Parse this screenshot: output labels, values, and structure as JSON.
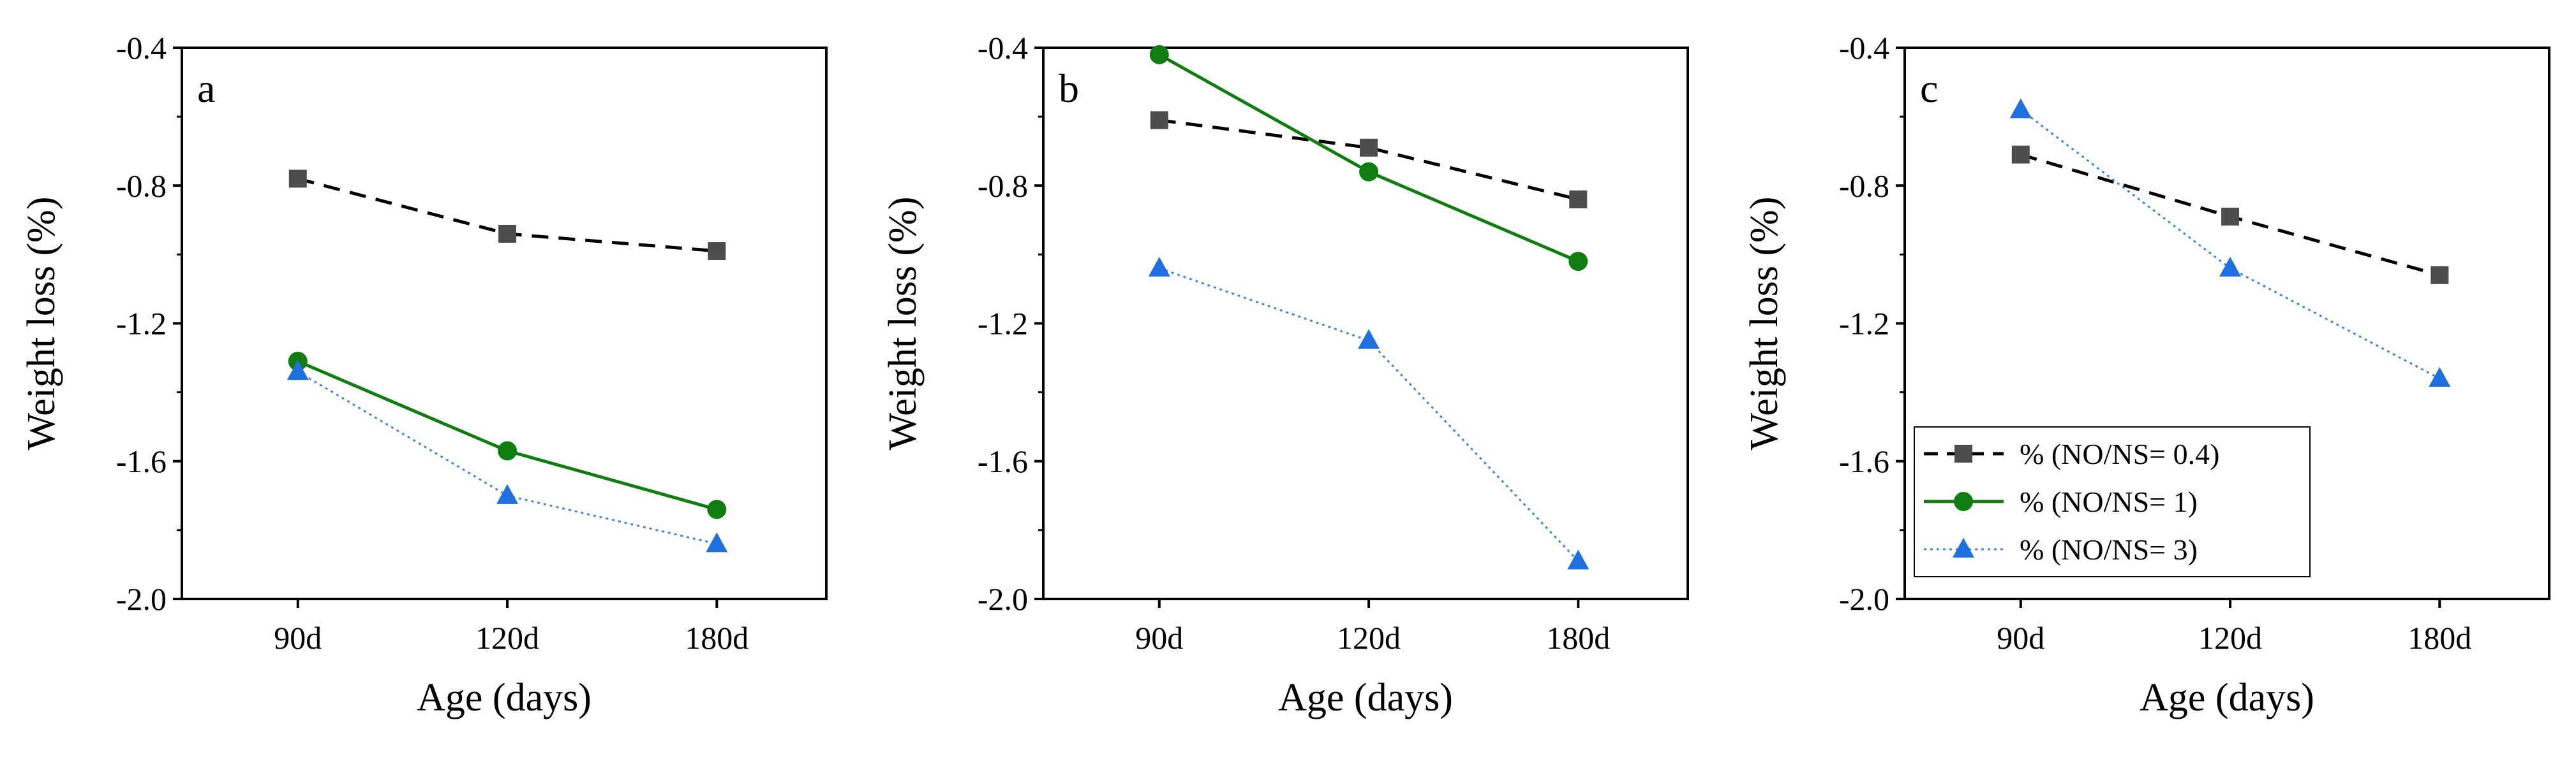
{
  "legend": {
    "entries": [
      {
        "label": "% (NO/NS= 0.4)",
        "color": "#000000",
        "marker_color": "#4d4d4d",
        "marker": "square",
        "line": "dashed"
      },
      {
        "label": "% (NO/NS= 1)",
        "color": "#0f7d0f",
        "marker_color": "#0f7d0f",
        "marker": "circle",
        "line": "solid"
      },
      {
        "label": "% (NO/NS= 3)",
        "color": "#3a86e0",
        "marker_color": "#1f6fe0",
        "marker": "triangle",
        "line": "dotted"
      }
    ]
  },
  "chart_data": [
    {
      "type": "line",
      "panel": "a",
      "xlabel": "Age (days)",
      "ylabel": "Weight loss (%)",
      "categories": [
        "90d",
        "120d",
        "180d"
      ],
      "ylim": [
        -2.0,
        -0.4
      ],
      "yticks": [
        "-0.4",
        "-0.8",
        "-1.2",
        "-1.6",
        "-2.0"
      ],
      "series": [
        {
          "name": "% (NO/NS= 0.4)",
          "values": [
            -0.78,
            -0.94,
            -0.99
          ]
        },
        {
          "name": "% (NO/NS= 1)",
          "values": [
            -1.31,
            -1.57,
            -1.74
          ]
        },
        {
          "name": "% (NO/NS= 3)",
          "values": [
            -1.34,
            -1.7,
            -1.84
          ]
        }
      ]
    },
    {
      "type": "line",
      "panel": "b",
      "xlabel": "Age (days)",
      "ylabel": "Weight loss (%)",
      "categories": [
        "90d",
        "120d",
        "180d"
      ],
      "ylim": [
        -2.0,
        -0.4
      ],
      "yticks": [
        "-0.4",
        "-0.8",
        "-1.2",
        "-1.6",
        "-2.0"
      ],
      "series": [
        {
          "name": "% (NO/NS= 0.4)",
          "values": [
            -0.61,
            -0.69,
            -0.84
          ]
        },
        {
          "name": "% (NO/NS= 1)",
          "values": [
            -0.42,
            -0.76,
            -1.02
          ]
        },
        {
          "name": "% (NO/NS= 3)",
          "values": [
            -1.04,
            -1.25,
            -1.89
          ]
        }
      ]
    },
    {
      "type": "line",
      "panel": "c",
      "xlabel": "Age (days)",
      "ylabel": "Weight loss (%)",
      "categories": [
        "90d",
        "120d",
        "180d"
      ],
      "ylim": [
        -2.0,
        -0.4
      ],
      "yticks": [
        "-0.4",
        "-0.8",
        "-1.2",
        "-1.6",
        "-2.0"
      ],
      "legend_position": "bottom-left",
      "series": [
        {
          "name": "% (NO/NS= 0.4)",
          "values": [
            -0.71,
            -0.89,
            -1.06
          ]
        },
        {
          "name": "% (NO/NS= 3)",
          "values": [
            -0.58,
            -1.04,
            -1.36
          ]
        }
      ]
    }
  ]
}
